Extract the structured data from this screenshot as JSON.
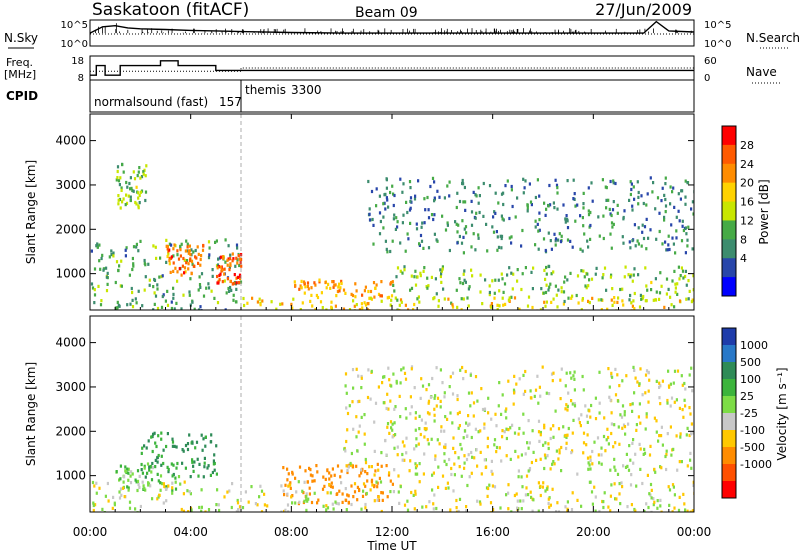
{
  "header": {
    "station": "Saskatoon (fitACF)",
    "beam": "Beam 09",
    "date": "27/Jun/2009"
  },
  "noise_panel": {
    "left_label": "N.Sky",
    "right_label": "N.Search",
    "left_ticks": [
      "10^5",
      "10^0"
    ],
    "right_ticks": [
      "10^5",
      "10^0"
    ]
  },
  "freq_panel": {
    "left_label_1": "Freq.",
    "left_label_2": "[MHz]",
    "right_label": "Nave",
    "left_ticks": [
      "18",
      "8"
    ],
    "right_ticks": [
      "60",
      "0"
    ]
  },
  "cpid": {
    "label": "CPID",
    "modes": [
      {
        "name": "normalsound (fast)",
        "id": "157",
        "start_hour": 0
      },
      {
        "name": "themis",
        "id": "3300",
        "start_hour": 6
      }
    ]
  },
  "power_panel": {
    "ylabel": "Slant Range [km]",
    "colorbar_label": "Power [dB]",
    "colorbar_ticks": [
      "28",
      "24",
      "20",
      "16",
      "12",
      "8",
      "4"
    ],
    "colorbar_colors": [
      "#ff0000",
      "#ff5a00",
      "#ff8c00",
      "#ffd200",
      "#c8e600",
      "#46aa46",
      "#3c8c6e",
      "#2846aa",
      "#0000ff"
    ]
  },
  "velocity_panel": {
    "ylabel": "Slant Range [km]",
    "colorbar_label": "Velocity [m s⁻¹]",
    "colorbar_ticks": [
      "1000",
      "500",
      "100",
      "25",
      "-25",
      "-100",
      "-500",
      "-1000"
    ],
    "colorbar_colors": [
      "#1e3caa",
      "#2878c8",
      "#2e8b57",
      "#3cb43c",
      "#7ddc46",
      "#c8c8c8",
      "#ffc800",
      "#ff8c00",
      "#ff5000",
      "#ff0000"
    ]
  },
  "axes": {
    "xlabel": "Time UT",
    "x_ticks": [
      "00:00",
      "04:00",
      "08:00",
      "12:00",
      "16:00",
      "20:00",
      "00:00"
    ],
    "y_ticks": [
      "1000",
      "2000",
      "3000",
      "4000"
    ]
  },
  "chart_data": [
    {
      "type": "line",
      "title": "N.Sky / N.Search",
      "x_unit": "hours UT",
      "y_scale": "log",
      "xlim": [
        0,
        24
      ],
      "ylim": [
        1,
        100000
      ],
      "series": [
        {
          "name": "N.Sky",
          "style": "solid",
          "x": [
            0,
            0.5,
            1,
            1.5,
            2,
            3,
            4,
            5,
            6,
            8,
            10,
            12,
            14,
            16,
            18,
            20,
            22,
            22.5,
            23,
            24
          ],
          "y": [
            300,
            5000,
            8000,
            3000,
            2000,
            1500,
            1000,
            800,
            600,
            400,
            300,
            300,
            300,
            300,
            300,
            300,
            300,
            50000,
            800,
            500
          ]
        },
        {
          "name": "N.Search",
          "style": "dotted",
          "x": [
            0,
            4,
            8,
            12,
            16,
            20,
            24
          ],
          "y": [
            200,
            200,
            200,
            200,
            200,
            200,
            200
          ]
        }
      ]
    },
    {
      "type": "line",
      "title": "Freq. / Nave",
      "x_unit": "hours UT",
      "xlim": [
        0,
        24
      ],
      "series": [
        {
          "name": "Freq.",
          "unit": "MHz",
          "style": "solid",
          "x": [
            0,
            0.25,
            0.25,
            0.6,
            0.6,
            1.2,
            1.2,
            2.0,
            2.0,
            2.8,
            2.8,
            3.5,
            3.5,
            4.0,
            4.0,
            5.0,
            5.0,
            6.0,
            6.0,
            24
          ],
          "y": [
            10,
            10,
            14,
            14,
            10,
            10,
            14,
            14,
            14,
            14,
            16,
            16,
            14,
            14,
            14,
            14,
            12,
            12,
            12,
            12
          ]
        },
        {
          "name": "Nave",
          "style": "dotted",
          "x": [
            0,
            6,
            6,
            24
          ],
          "y": [
            22,
            22,
            30,
            30
          ]
        }
      ]
    },
    {
      "type": "heatmap",
      "title": "Power [dB]",
      "x_unit": "hours UT",
      "y_unit": "km",
      "xlim": [
        0,
        24
      ],
      "ylim": [
        180,
        4600
      ],
      "value_range": [
        0,
        30
      ],
      "regions": [
        {
          "t0": 0.0,
          "t1": 6.0,
          "r0": 200,
          "r1": 1800,
          "value": 10
        },
        {
          "t0": 3.0,
          "t1": 4.5,
          "r0": 1000,
          "r1": 1700,
          "value": 24
        },
        {
          "t0": 5.0,
          "t1": 6.0,
          "r0": 800,
          "r1": 1500,
          "value": 26
        },
        {
          "t0": 1.0,
          "t1": 2.2,
          "r0": 2500,
          "r1": 3500,
          "value": 12
        },
        {
          "t0": 6.0,
          "t1": 24.0,
          "r0": 180,
          "r1": 500,
          "value": 18
        },
        {
          "t0": 8.0,
          "t1": 12.0,
          "r0": 500,
          "r1": 900,
          "value": 22
        },
        {
          "t0": 12.0,
          "t1": 24.0,
          "r0": 400,
          "r1": 1200,
          "value": 12
        },
        {
          "t0": 11.0,
          "t1": 24.0,
          "r0": 1500,
          "r1": 3200,
          "value": 8
        }
      ]
    },
    {
      "type": "heatmap",
      "title": "Velocity [m s⁻¹]",
      "x_unit": "hours UT",
      "y_unit": "km",
      "xlim": [
        0,
        24
      ],
      "ylim": [
        180,
        4600
      ],
      "value_range": [
        -1000,
        1000
      ],
      "regions": [
        {
          "t0": 2.0,
          "t1": 5.0,
          "r0": 1000,
          "r1": 2000,
          "value": 200
        },
        {
          "t0": 1.0,
          "t1": 3.5,
          "r0": 700,
          "r1": 1300,
          "value": 50
        },
        {
          "t0": 7.5,
          "t1": 12.0,
          "r0": 400,
          "r1": 1300,
          "value": -150
        },
        {
          "t0": 0.0,
          "t1": 24.0,
          "r0": 200,
          "r1": 900,
          "value": 0
        },
        {
          "t0": 10.0,
          "t1": 24.0,
          "r0": 1000,
          "r1": 3500,
          "value": 0
        }
      ]
    }
  ]
}
